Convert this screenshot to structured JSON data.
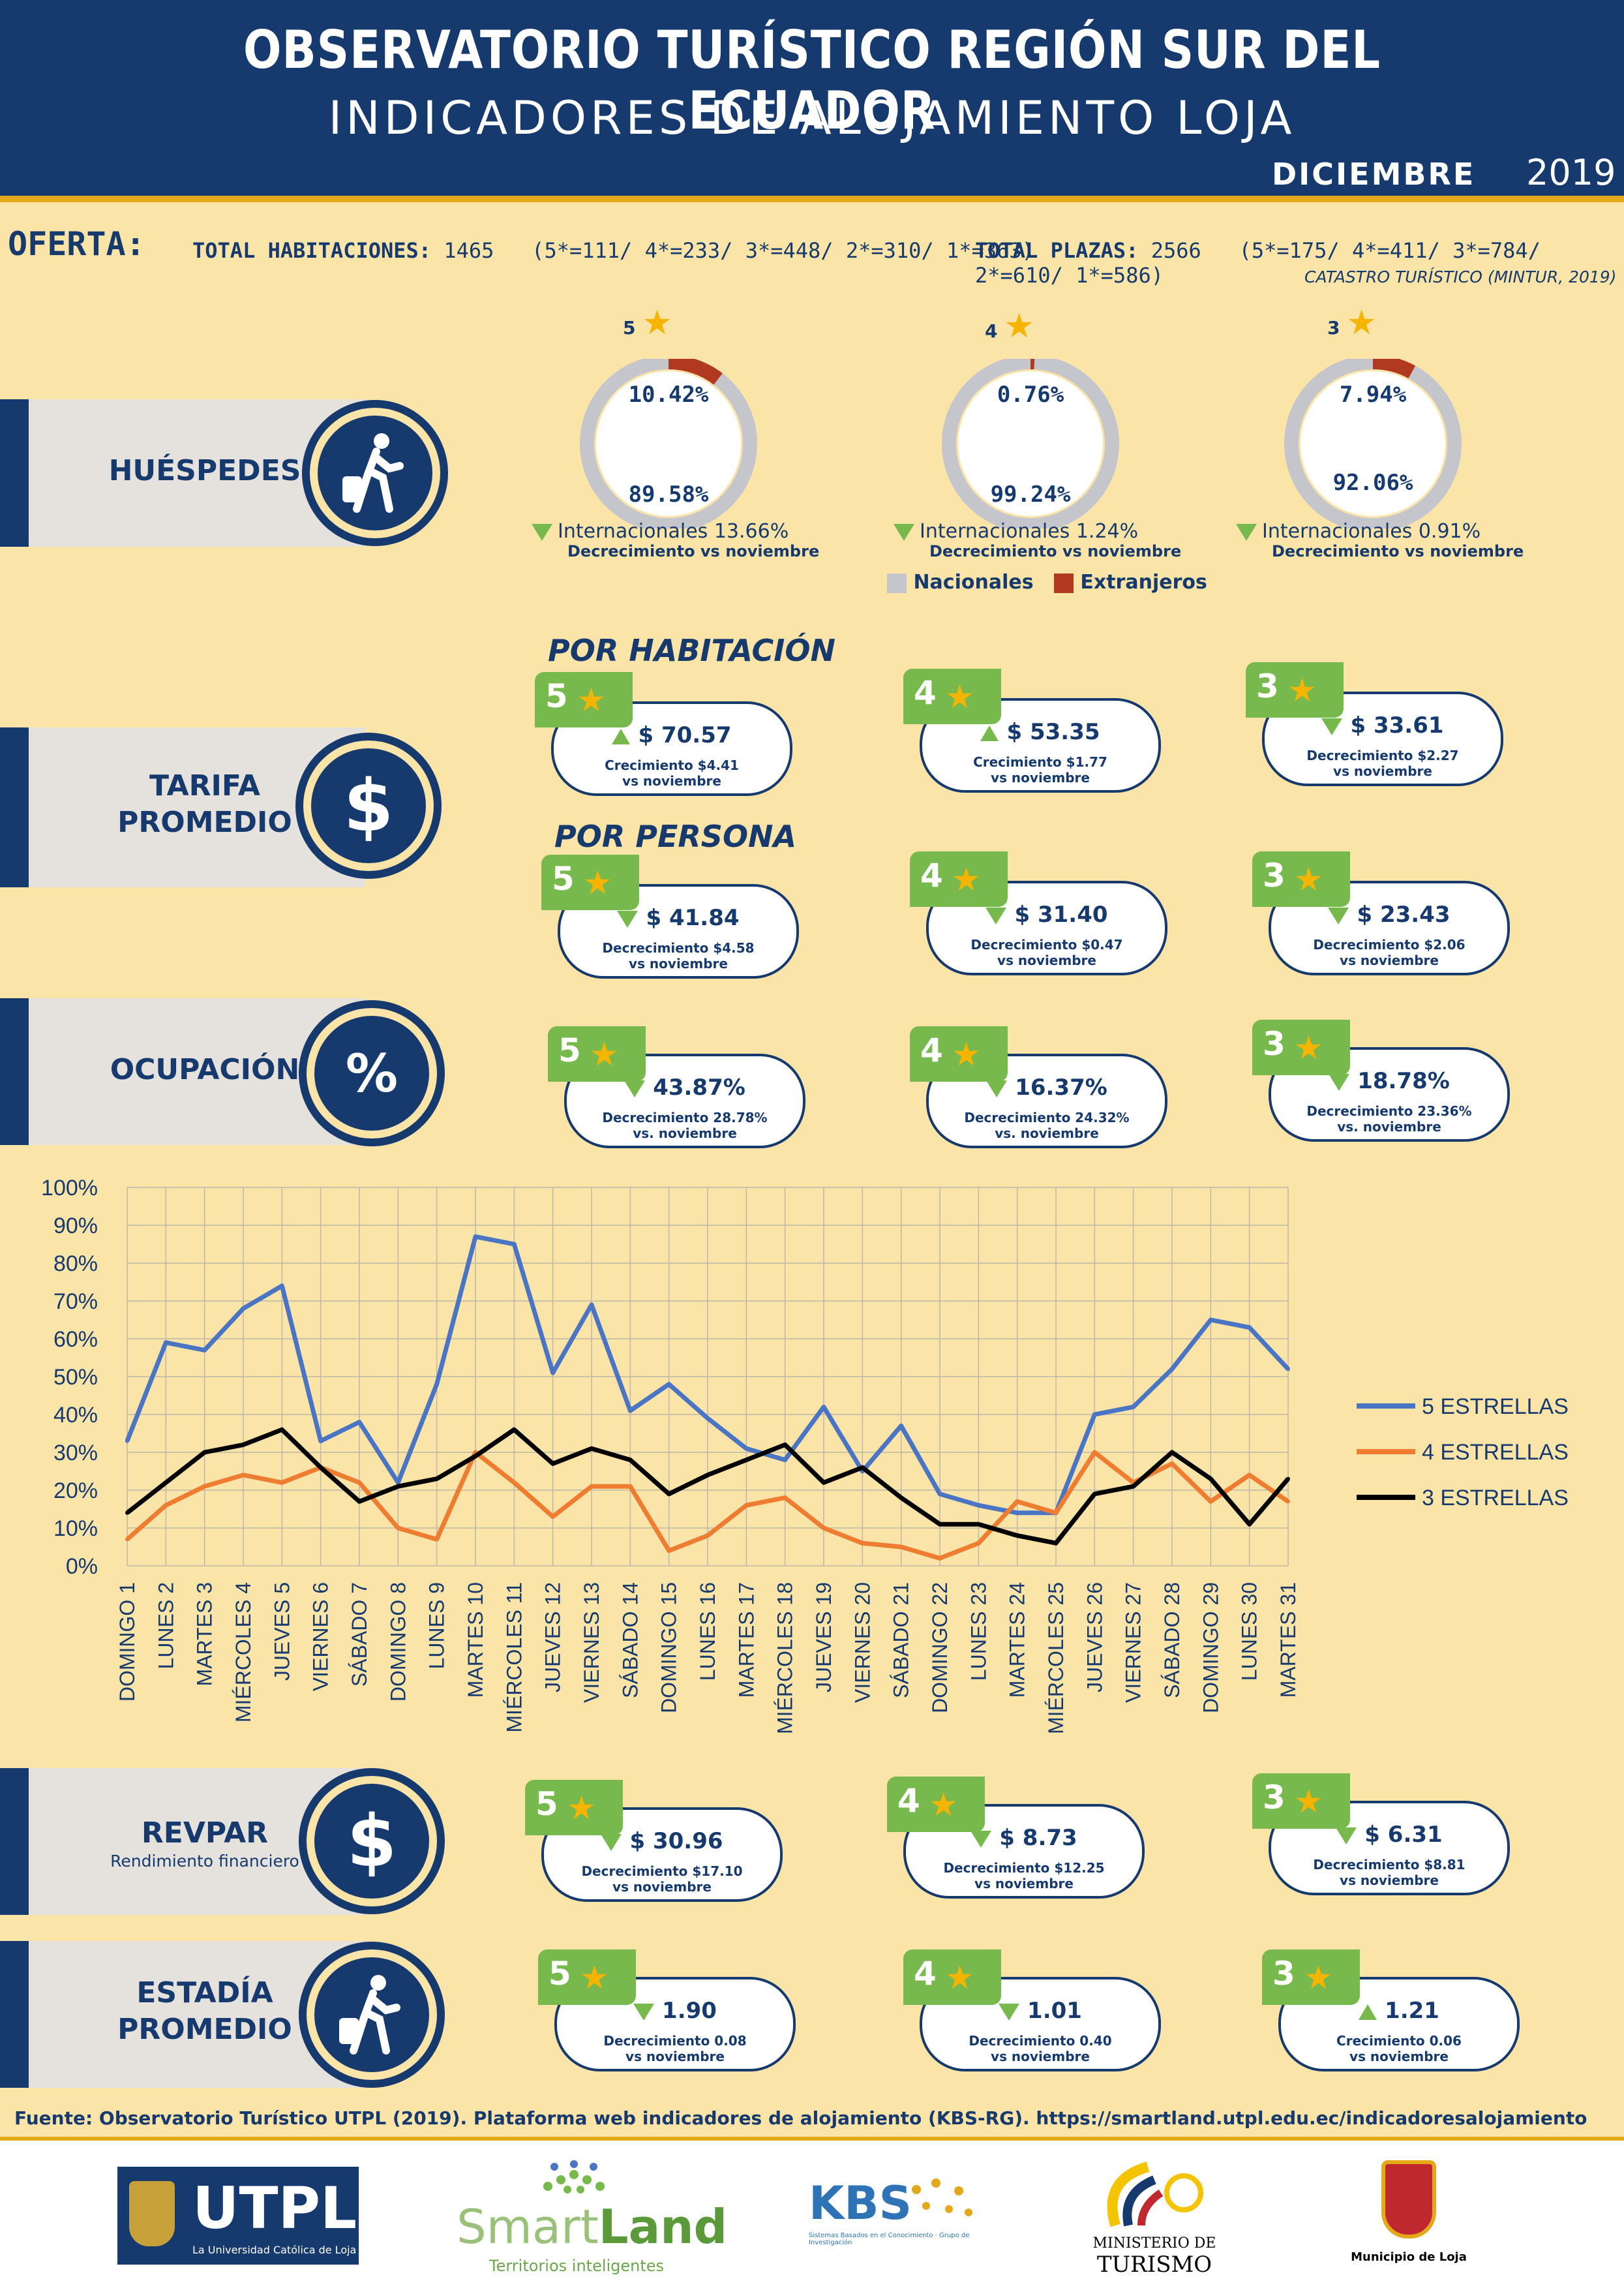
{
  "header": {
    "title": "OBSERVATORIO TURÍSTICO REGIÓN SUR DEL ECUADOR",
    "subtitle": "INDICADORES DE ALOJAMIENTO LOJA",
    "month": "DICIEMBRE",
    "year": "2019"
  },
  "oferta": {
    "label": "OFERTA:",
    "hab_label": "TOTAL HABITACIONES:",
    "hab_value": "1465",
    "hab_detail": "(5*=111/ 4*=233/ 3*=448/ 2*=310/ 1*=363)",
    "plazas_label": "TOTAL PLAZAS:",
    "plazas_value": "2566",
    "plazas_detail": "(5*=175/ 4*=411/ 3*=784/ 2*=610/ 1*=586)",
    "source": "CATASTRO TURÍSTICO (MINTUR, 2019)"
  },
  "sections": {
    "huespedes": "HUÉSPEDES",
    "tarifa_1": "TARIFA",
    "tarifa_2": "PROMEDIO",
    "ocupacion": "OCUPACIÓN",
    "revpar": "REVPAR",
    "revpar_sub": "Rendimiento financiero",
    "estadia_1": "ESTADÍA",
    "estadia_2": "PROMEDIO"
  },
  "icons": {
    "guest": "walking-traveler-icon",
    "dollar": "dollar-icon",
    "percent": "percent-icon",
    "star": "star-icon"
  },
  "colors": {
    "nacionales": "#c5c5cc",
    "extranjeros": "#b0391f",
    "s5": "#4a74c4",
    "s4": "#ee7d31",
    "s3": "#000000",
    "badge": "#77b94c",
    "navy": "#173a6e"
  },
  "huespedes": [
    {
      "stars": "5",
      "extranjeros_pct": "10.42%",
      "nacionales_pct": "89.58%",
      "extranjeros": 10.42,
      "intl": "Internacionales 13.66%",
      "trend": "Decrecimiento vs noviembre"
    },
    {
      "stars": "4",
      "extranjeros_pct": "0.76%",
      "nacionales_pct": "99.24%",
      "extranjeros": 0.76,
      "intl": "Internacionales 1.24%",
      "trend": "Decrecimiento vs noviembre"
    },
    {
      "stars": "3",
      "extranjeros_pct": "7.94%",
      "nacionales_pct": "92.06%",
      "extranjeros": 7.94,
      "intl": "Internacionales 0.91%",
      "trend": "Decrecimiento vs noviembre"
    }
  ],
  "legend_donut": {
    "nacionales": "Nacionales",
    "extranjeros": "Extranjeros"
  },
  "tarifa": {
    "por_habitacion": "POR HABITACIÓN",
    "por_persona": "POR PERSONA",
    "habitacion": [
      {
        "stars": "5",
        "value": "$ 70.57",
        "dir": "up",
        "l1": "Crecimiento $4.41",
        "l2": "vs noviembre"
      },
      {
        "stars": "4",
        "value": "$ 53.35",
        "dir": "up",
        "l1": "Crecimiento $1.77",
        "l2": "vs noviembre"
      },
      {
        "stars": "3",
        "value": "$ 33.61",
        "dir": "down",
        "l1": "Decrecimiento $2.27",
        "l2": "vs noviembre"
      }
    ],
    "persona": [
      {
        "stars": "5",
        "value": "$ 41.84",
        "dir": "down",
        "l1": "Decrecimiento $4.58",
        "l2": "vs noviembre"
      },
      {
        "stars": "4",
        "value": "$ 31.40",
        "dir": "down",
        "l1": "Decrecimiento $0.47",
        "l2": "vs noviembre"
      },
      {
        "stars": "3",
        "value": "$ 23.43",
        "dir": "down",
        "l1": "Decrecimiento $2.06",
        "l2": "vs noviembre"
      }
    ]
  },
  "ocupacion": [
    {
      "stars": "5",
      "value": "43.87%",
      "dir": "down",
      "l1": "Decrecimiento 28.78%",
      "l2": "vs. noviembre"
    },
    {
      "stars": "4",
      "value": "16.37%",
      "dir": "down",
      "l1": "Decrecimiento 24.32%",
      "l2": "vs. noviembre"
    },
    {
      "stars": "3",
      "value": "18.78%",
      "dir": "down",
      "l1": "Decrecimiento 23.36%",
      "l2": "vs. noviembre"
    }
  ],
  "revpar": [
    {
      "stars": "5",
      "value": "$ 30.96",
      "dir": "down",
      "l1": "Decrecimiento $17.10",
      "l2": "vs noviembre"
    },
    {
      "stars": "4",
      "value": "$ 8.73",
      "dir": "down",
      "l1": "Decrecimiento $12.25",
      "l2": "vs noviembre"
    },
    {
      "stars": "3",
      "value": "$ 6.31",
      "dir": "down",
      "l1": "Decrecimiento $8.81",
      "l2": "vs noviembre"
    }
  ],
  "estadia": [
    {
      "stars": "5",
      "value": "1.90",
      "dir": "down",
      "l1": "Decrecimiento 0.08",
      "l2": "vs noviembre"
    },
    {
      "stars": "4",
      "value": "1.01",
      "dir": "down",
      "l1": "Decrecimiento 0.40",
      "l2": "vs noviembre"
    },
    {
      "stars": "3",
      "value": "1.21",
      "dir": "up",
      "l1": "Crecimiento 0.06",
      "l2": "vs noviembre"
    }
  ],
  "chart_data": {
    "type": "line",
    "ylim": [
      0,
      100
    ],
    "yticks": [
      "0%",
      "10%",
      "20%",
      "30%",
      "40%",
      "50%",
      "60%",
      "70%",
      "80%",
      "90%",
      "100%"
    ],
    "legend_position": "right",
    "categories": [
      "DOMINGO 1",
      "LUNES 2",
      "MARTES 3",
      "MIÉRCOLES 4",
      "JUEVES 5",
      "VIERNES 6",
      "SÁBADO 7",
      "DOMINGO 8",
      "LUNES 9",
      "MARTES 10",
      "MIÉRCOLES 11",
      "JUEVES 12",
      "VIERNES 13",
      "SÁBADO 14",
      "DOMINGO 15",
      "LUNES 16",
      "MARTES 17",
      "MIÉRCOLES 18",
      "JUEVES 19",
      "VIERNES 20",
      "SÁBADO 21",
      "DOMINGO 22",
      "LUNES 23",
      "MARTES 24",
      "MIÉRCOLES 25",
      "JUEVES 26",
      "VIERNES 27",
      "SÁBADO 28",
      "DOMINGO 29",
      "LUNES 30",
      "MARTES 31"
    ],
    "series": [
      {
        "name": "5 ESTRELLAS",
        "color": "#4a74c4",
        "values": [
          33,
          59,
          57,
          68,
          74,
          33,
          38,
          22,
          48,
          87,
          85,
          51,
          69,
          41,
          48,
          39,
          31,
          28,
          42,
          25,
          37,
          19,
          16,
          14,
          14,
          40,
          42,
          52,
          65,
          63,
          52
        ]
      },
      {
        "name": "4 ESTRELLAS",
        "color": "#ee7d31",
        "values": [
          7,
          16,
          21,
          24,
          22,
          26,
          22,
          10,
          7,
          30,
          22,
          13,
          21,
          21,
          4,
          8,
          16,
          18,
          10,
          6,
          5,
          2,
          6,
          17,
          14,
          30,
          22,
          27,
          17,
          24,
          17
        ]
      },
      {
        "name": "3 ESTRELLAS",
        "color": "#000000",
        "values": [
          14,
          22,
          30,
          32,
          36,
          26,
          17,
          21,
          23,
          29,
          36,
          27,
          31,
          28,
          19,
          24,
          28,
          32,
          22,
          26,
          18,
          11,
          11,
          8,
          6,
          19,
          21,
          30,
          23,
          11,
          23
        ]
      }
    ]
  },
  "footer": {
    "source": "Fuente: Observatorio Turístico UTPL (2019). Plataforma web indicadores de alojamiento (KBS-RG). https://smartland.utpl.edu.ec/indicadoresalojamiento",
    "utpl": "UTPL",
    "utpl_sub": "La Universidad Católica de Loja",
    "smart1": "Smart",
    "smart2": "Land",
    "smart_sub": "Territorios inteligentes",
    "kbs": "KBS",
    "kbs_sub": "Sistemas Basados en el Conocimiento · Grupo de Investigación",
    "min1": "MINISTERIO DE",
    "min2": "TURISMO",
    "muni": "Municipio de Loja"
  }
}
